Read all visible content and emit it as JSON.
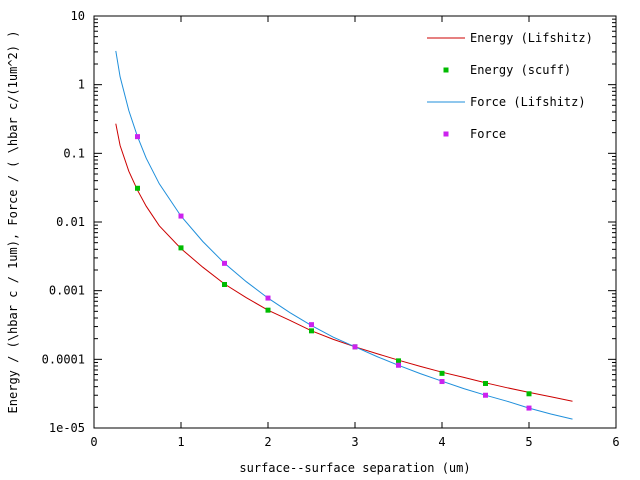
{
  "chart_data": {
    "type": "line",
    "xlabel": "surface--surface separation (um)",
    "ylabel": "Energy / (\\hbar c / 1um), Force / ( \\hbar c/(1um^2) )",
    "xlim": [
      0,
      6
    ],
    "ylim": [
      1e-05,
      10
    ],
    "yscale": "log",
    "grid": false,
    "legend_position": "top-right",
    "x_ticks": [
      0,
      1,
      2,
      3,
      4,
      5,
      6
    ],
    "x_tick_labels": [
      "0",
      "1",
      "2",
      "3",
      "4",
      "5",
      "6"
    ],
    "y_ticks": [
      1e-05,
      0.0001,
      0.001,
      0.01,
      0.1,
      1,
      10
    ],
    "y_tick_labels": [
      "1e-05",
      "0.0001",
      "0.001",
      "0.01",
      "0.1",
      "1",
      "10"
    ],
    "series": [
      {
        "name": "Energy (Lifshitz)",
        "kind": "line",
        "color": "#cc0000",
        "x": [
          0.25,
          0.3,
          0.4,
          0.5,
          0.6,
          0.75,
          1.0,
          1.25,
          1.5,
          1.75,
          2.0,
          2.25,
          2.5,
          2.75,
          3.0,
          3.25,
          3.5,
          3.75,
          4.0,
          4.25,
          4.5,
          4.75,
          5.0,
          5.25,
          5.5
        ],
        "y": [
          0.27,
          0.13,
          0.055,
          0.029,
          0.017,
          0.0088,
          0.0041,
          0.0022,
          0.00125,
          0.00079,
          0.00052,
          0.00037,
          0.00026,
          0.000195,
          0.000152,
          0.000121,
          9.7e-05,
          7.9e-05,
          6.5e-05,
          5.45e-05,
          4.55e-05,
          3.85e-05,
          3.3e-05,
          2.85e-05,
          2.45e-05
        ]
      },
      {
        "name": "Energy (scuff)",
        "kind": "points",
        "color": "#00bb00",
        "x": [
          0.5,
          1.0,
          1.5,
          2.0,
          2.5,
          3.0,
          3.5,
          4.0,
          4.5,
          5.0
        ],
        "y": [
          0.031,
          0.0042,
          0.00123,
          0.00052,
          0.00026,
          0.000152,
          9.5e-05,
          6.25e-05,
          4.45e-05,
          3.15e-05
        ]
      },
      {
        "name": "Force (Lifshitz)",
        "kind": "line",
        "color": "#1f8fdb",
        "x": [
          0.25,
          0.3,
          0.4,
          0.5,
          0.6,
          0.75,
          1.0,
          1.25,
          1.5,
          1.75,
          2.0,
          2.25,
          2.5,
          2.75,
          3.0,
          3.25,
          3.5,
          3.75,
          4.0,
          4.25,
          4.5,
          4.75,
          5.0,
          5.25,
          5.5
        ],
        "y": [
          3.1,
          1.3,
          0.42,
          0.175,
          0.085,
          0.036,
          0.0122,
          0.0052,
          0.0025,
          0.00135,
          0.00078,
          0.00048,
          0.00031,
          0.00021,
          0.000152,
          0.00011,
          8.2e-05,
          6.2e-05,
          4.8e-05,
          3.75e-05,
          3e-05,
          2.45e-05,
          1.95e-05,
          1.6e-05,
          1.35e-05
        ]
      },
      {
        "name": "Force",
        "kind": "points",
        "color": "#cc22ee",
        "x": [
          0.5,
          1.0,
          1.5,
          2.0,
          2.5,
          3.0,
          3.5,
          4.0,
          4.5,
          5.0
        ],
        "y": [
          0.175,
          0.0122,
          0.0025,
          0.00078,
          0.00032,
          0.000152,
          8.2e-05,
          4.75e-05,
          3e-05,
          1.95e-05
        ]
      }
    ]
  }
}
